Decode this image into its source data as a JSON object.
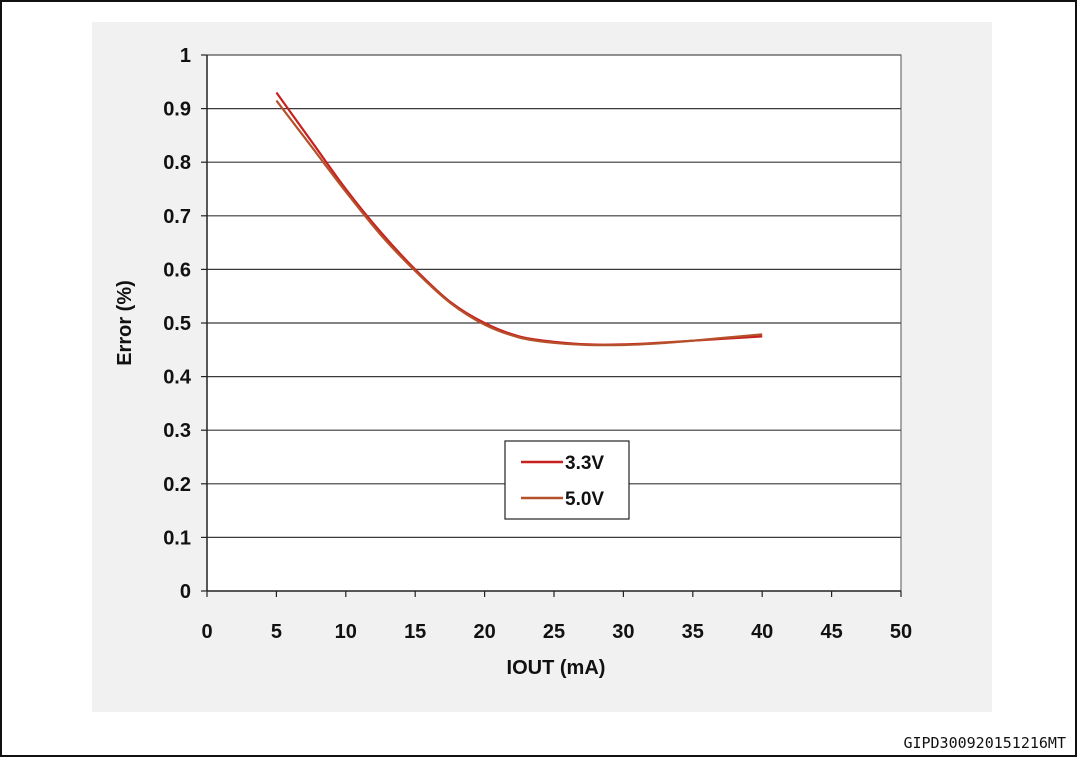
{
  "chart_data": {
    "type": "line",
    "xlabel": "IOUT (mA)",
    "ylabel": "Error (%)",
    "xlim": [
      0,
      50
    ],
    "ylim": [
      0,
      1
    ],
    "xticks": [
      "0",
      "5",
      "10",
      "15",
      "20",
      "25",
      "30",
      "35",
      "40",
      "45",
      "50"
    ],
    "yticks": [
      "0",
      "0.1",
      "0.2",
      "0.3",
      "0.4",
      "0.5",
      "0.6",
      "0.7",
      "0.8",
      "0.9",
      "1"
    ],
    "grid": "horizontal",
    "legend_position": "center-bottom",
    "series": [
      {
        "name": "3.3V",
        "color": "#c8201e",
        "x": [
          5,
          7.5,
          10,
          12.5,
          15,
          17.5,
          20,
          22.5,
          25,
          27.5,
          30,
          32.5,
          35,
          37.5,
          40
        ],
        "y": [
          0.93,
          0.84,
          0.75,
          0.67,
          0.6,
          0.54,
          0.5,
          0.475,
          0.465,
          0.46,
          0.46,
          0.463,
          0.467,
          0.471,
          0.475
        ]
      },
      {
        "name": "5.0V",
        "color": "#b5502a",
        "x": [
          5,
          7.5,
          10,
          12.5,
          15,
          17.5,
          20,
          22.5,
          25,
          27.5,
          30,
          32.5,
          35,
          37.5,
          40
        ],
        "y": [
          0.915,
          0.83,
          0.745,
          0.665,
          0.597,
          0.538,
          0.497,
          0.473,
          0.463,
          0.459,
          0.459,
          0.462,
          0.467,
          0.473,
          0.479
        ]
      }
    ]
  },
  "footer": {
    "figure_id": "GIPD300920151216MT"
  }
}
